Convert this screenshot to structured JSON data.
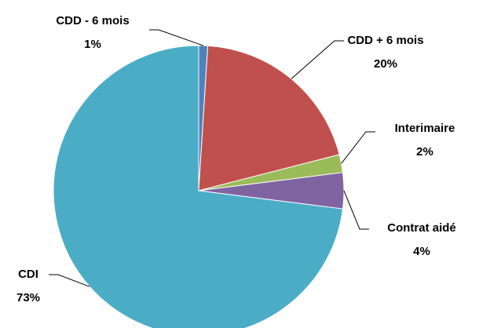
{
  "chart_data": {
    "type": "pie",
    "categories": [
      "CDD - 6 mois",
      "CDD + 6 mois",
      "Interimaire",
      "Contrat aidé",
      "CDI"
    ],
    "values": [
      1,
      20,
      2,
      4,
      73
    ],
    "value_labels": [
      "1%",
      "20%",
      "2%",
      "4%",
      "73%"
    ],
    "colors": [
      "#4f81bd",
      "#c0504d",
      "#9bbb59",
      "#8064a2",
      "#4bacc6"
    ]
  }
}
